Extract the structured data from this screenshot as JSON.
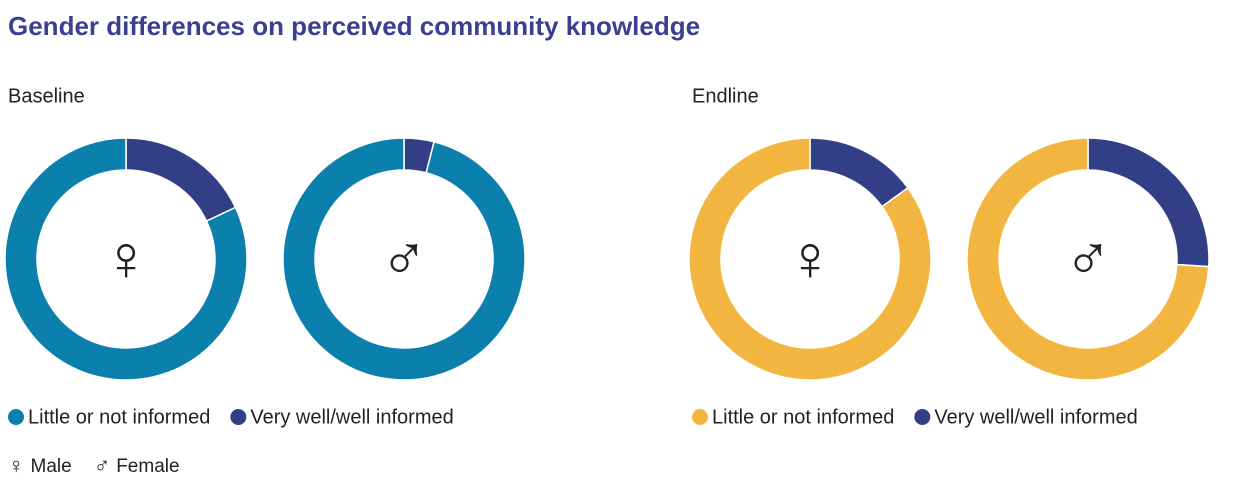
{
  "title": "Gender differences on perceived community knowledge",
  "chart_data": [
    {
      "type": "donut",
      "title": "Baseline",
      "categories": [
        "Little or not informed",
        "Very well/well informed"
      ],
      "colors": [
        "#0b80ad",
        "#323f87"
      ],
      "groups": [
        {
          "label": "♀",
          "values": [
            82,
            18
          ]
        },
        {
          "label": "♂",
          "values": [
            96,
            4
          ]
        }
      ]
    },
    {
      "type": "donut",
      "title": "Endline",
      "categories": [
        "Little or not informed",
        "Very well/well informed"
      ],
      "colors": [
        "#f2b540",
        "#323f87"
      ],
      "groups": [
        {
          "label": "♀",
          "values": [
            85,
            15
          ]
        },
        {
          "label": "♂",
          "values": [
            74,
            26
          ]
        }
      ]
    }
  ],
  "symbol_legend": [
    {
      "symbol": "♀",
      "label": "Male"
    },
    {
      "symbol": "♂",
      "label": "Female"
    }
  ]
}
